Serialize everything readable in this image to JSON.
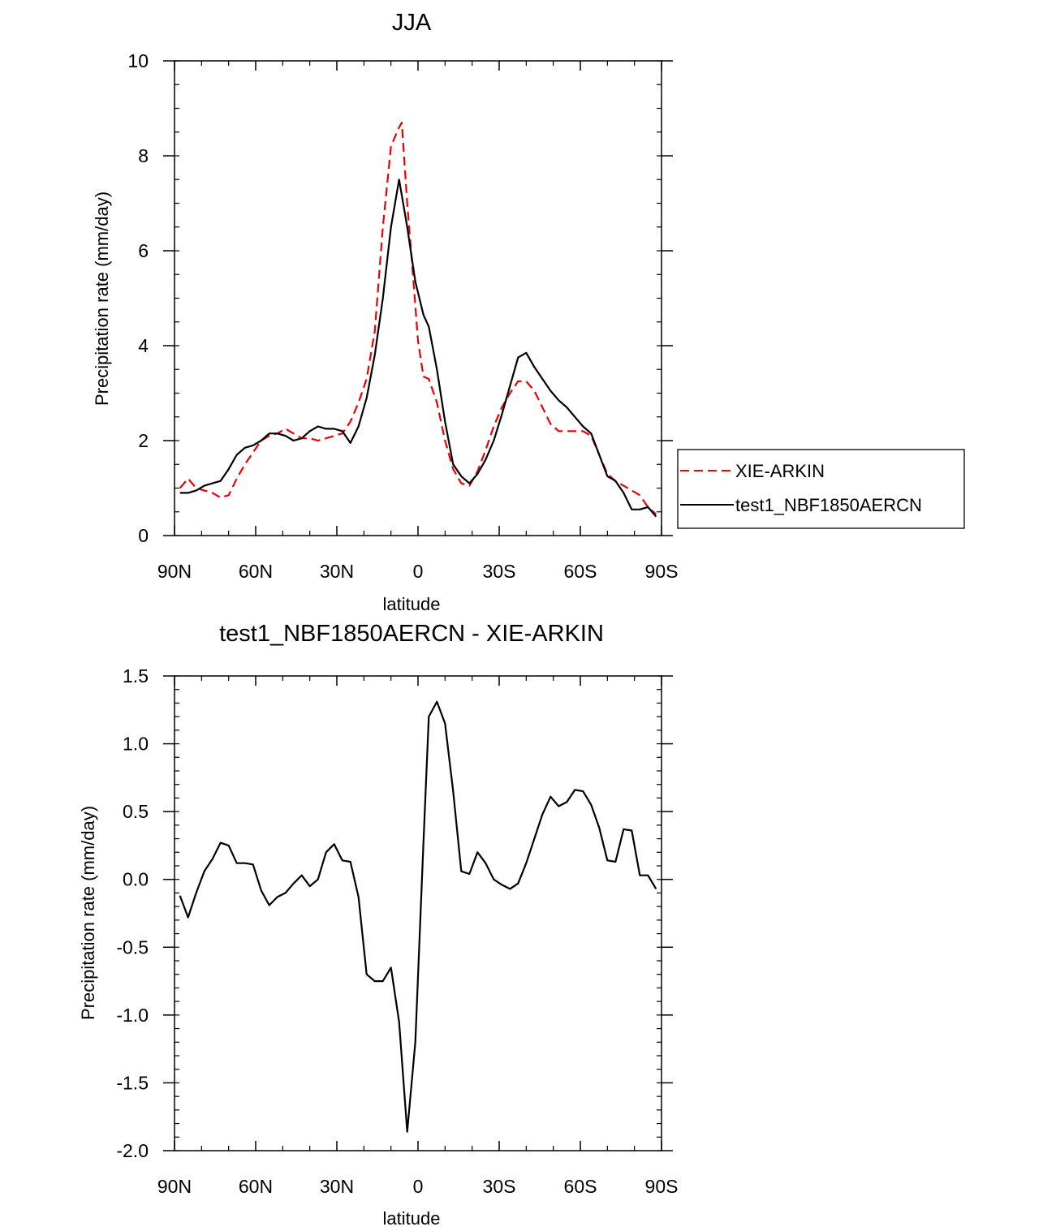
{
  "chart_data": [
    {
      "type": "line",
      "title": "JJA",
      "xlabel": "latitude",
      "ylabel": "Precipitation rate (mm/day)",
      "xlim": [
        90,
        -90
      ],
      "ylim": [
        0,
        10
      ],
      "xticks": [
        90,
        60,
        30,
        0,
        -30,
        -60,
        -90
      ],
      "xtick_labels": [
        "90N",
        "60N",
        "30N",
        "0",
        "30S",
        "60S",
        "90S"
      ],
      "yticks": [
        0,
        2,
        4,
        6,
        8,
        10
      ],
      "ytick_labels": [
        "0",
        "2",
        "4",
        "6",
        "8",
        "10"
      ],
      "legend_position": "right",
      "series": [
        {
          "name": "XIE-ARKIN",
          "color": "#ee0000",
          "dash": "dashed",
          "x": [
            88,
            85,
            82,
            79,
            76,
            73,
            70,
            67,
            64,
            61,
            58,
            55,
            52,
            49,
            46,
            43,
            40,
            37,
            34,
            31,
            28,
            25,
            22,
            19,
            16,
            13,
            10,
            7,
            6,
            4,
            2,
            0,
            -2,
            -4,
            -7,
            -10,
            -13,
            -16,
            -19,
            -22,
            -25,
            -28,
            -31,
            -34,
            -37,
            -40,
            -43,
            -46,
            -49,
            -52,
            -55,
            -58,
            -61,
            -64,
            -67,
            -70,
            -73,
            -76,
            -79,
            -82,
            -85,
            -88
          ],
          "y": [
            1.0,
            1.2,
            1.0,
            0.95,
            0.9,
            0.8,
            0.85,
            1.2,
            1.5,
            1.75,
            2.0,
            2.1,
            2.15,
            2.25,
            2.15,
            2.05,
            2.05,
            2.0,
            2.05,
            2.1,
            2.15,
            2.4,
            2.8,
            3.3,
            4.3,
            6.5,
            8.2,
            8.6,
            8.7,
            7.0,
            5.6,
            4.1,
            3.35,
            3.3,
            2.8,
            2.0,
            1.4,
            1.1,
            1.05,
            1.35,
            1.8,
            2.3,
            2.7,
            3.0,
            3.25,
            3.25,
            3.05,
            2.7,
            2.35,
            2.2,
            2.2,
            2.2,
            2.2,
            2.1,
            1.7,
            1.3,
            1.15,
            1.05,
            0.95,
            0.85,
            0.6,
            0.45
          ]
        },
        {
          "name": "test1_NBF1850AERCN",
          "color": "#000000",
          "dash": "solid",
          "x": [
            88,
            85,
            82,
            79,
            76,
            73,
            70,
            67,
            64,
            61,
            58,
            55,
            52,
            49,
            46,
            43,
            40,
            37,
            34,
            31,
            28,
            25,
            22,
            19,
            16,
            13,
            10,
            7,
            4,
            1,
            -2,
            -4,
            -7,
            -10,
            -13,
            -16,
            -19,
            -22,
            -25,
            -28,
            -31,
            -34,
            -37,
            -40,
            -43,
            -46,
            -49,
            -52,
            -55,
            -58,
            -61,
            -64,
            -67,
            -70,
            -73,
            -76,
            -79,
            -82,
            -85,
            -88
          ],
          "y": [
            0.9,
            0.9,
            0.95,
            1.05,
            1.1,
            1.15,
            1.4,
            1.7,
            1.85,
            1.9,
            2.0,
            2.15,
            2.15,
            2.1,
            2.0,
            2.05,
            2.2,
            2.3,
            2.25,
            2.25,
            2.2,
            1.95,
            2.3,
            2.9,
            3.8,
            5.0,
            6.5,
            7.5,
            6.5,
            5.35,
            4.65,
            4.4,
            3.5,
            2.4,
            1.5,
            1.25,
            1.1,
            1.3,
            1.6,
            2.0,
            2.55,
            3.15,
            3.75,
            3.85,
            3.55,
            3.3,
            3.05,
            2.85,
            2.7,
            2.5,
            2.3,
            2.15,
            1.7,
            1.25,
            1.15,
            0.9,
            0.55,
            0.55,
            0.6,
            0.4
          ]
        }
      ]
    },
    {
      "type": "line",
      "title": "test1_NBF1850AERCN - XIE-ARKIN",
      "xlabel": "latitude",
      "ylabel": "Precipitation rate (mm/day)",
      "xlim": [
        90,
        -90
      ],
      "ylim": [
        -2.0,
        1.5
      ],
      "xticks": [
        90,
        60,
        30,
        0,
        -30,
        -60,
        -90
      ],
      "xtick_labels": [
        "90N",
        "60N",
        "30N",
        "0",
        "30S",
        "60S",
        "90S"
      ],
      "yticks": [
        -2.0,
        -1.5,
        -1.0,
        -0.5,
        0.0,
        0.5,
        1.0,
        1.5
      ],
      "ytick_labels": [
        "-2.0",
        "-1.5",
        "-1.0",
        "-0.5",
        "0.0",
        "0.5",
        "1.0",
        "1.5"
      ],
      "series": [
        {
          "name": "test1_NBF1850AERCN - XIE-ARKIN",
          "color": "#000000",
          "dash": "solid",
          "x": [
            88,
            85,
            82,
            79,
            76,
            73,
            70,
            67,
            64,
            61,
            58,
            55,
            52,
            49,
            46,
            43,
            40,
            37,
            34,
            31,
            28,
            25,
            22,
            19,
            16,
            13,
            10,
            7,
            4,
            1,
            -2,
            -4,
            -7,
            -10,
            -13,
            -16,
            -19,
            -22,
            -25,
            -28,
            -31,
            -34,
            -37,
            -40,
            -43,
            -46,
            -49,
            -52,
            -55,
            -58,
            -61,
            -64,
            -67,
            -70,
            -73,
            -76,
            -79,
            -82,
            -85,
            -88
          ],
          "y": [
            -0.12,
            -0.28,
            -0.1,
            0.06,
            0.15,
            0.27,
            0.25,
            0.12,
            0.12,
            0.11,
            -0.08,
            -0.19,
            -0.13,
            -0.1,
            -0.03,
            0.03,
            -0.05,
            0.0,
            0.2,
            0.26,
            0.14,
            0.13,
            -0.13,
            -0.7,
            -0.75,
            -0.75,
            -0.65,
            -1.05,
            -1.86,
            -1.2,
            0.27,
            1.2,
            1.31,
            1.15,
            0.65,
            0.06,
            0.04,
            0.2,
            0.12,
            0.0,
            -0.04,
            -0.07,
            -0.03,
            0.12,
            0.3,
            0.48,
            0.61,
            0.54,
            0.57,
            0.66,
            0.65,
            0.55,
            0.38,
            0.14,
            0.13,
            0.37,
            0.36,
            0.03,
            0.03,
            -0.07
          ]
        }
      ]
    }
  ]
}
